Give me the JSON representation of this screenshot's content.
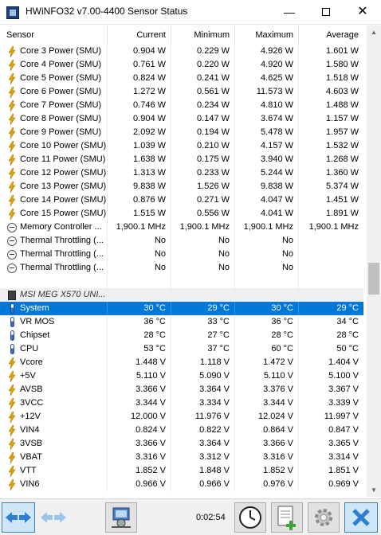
{
  "window": {
    "title": "HWiNFO32 v7.00-4400 Sensor Status"
  },
  "columns": [
    "Sensor",
    "Current",
    "Minimum",
    "Maximum",
    "Average"
  ],
  "rows": [
    {
      "icon": "bolt",
      "label": "Core 3 Power (SMU)",
      "current": "0.904 W",
      "minimum": "0.229 W",
      "maximum": "4.926 W",
      "average": "1.601 W"
    },
    {
      "icon": "bolt",
      "label": "Core 4 Power (SMU)",
      "current": "0.761 W",
      "minimum": "0.220 W",
      "maximum": "4.920 W",
      "average": "1.580 W"
    },
    {
      "icon": "bolt",
      "label": "Core 5 Power (SMU)",
      "current": "0.824 W",
      "minimum": "0.241 W",
      "maximum": "4.625 W",
      "average": "1.518 W"
    },
    {
      "icon": "bolt",
      "label": "Core 6 Power (SMU)",
      "current": "1.272 W",
      "minimum": "0.561 W",
      "maximum": "11.573 W",
      "average": "4.603 W"
    },
    {
      "icon": "bolt",
      "label": "Core 7 Power (SMU)",
      "current": "0.746 W",
      "minimum": "0.234 W",
      "maximum": "4.810 W",
      "average": "1.488 W"
    },
    {
      "icon": "bolt",
      "label": "Core 8 Power (SMU)",
      "current": "0.904 W",
      "minimum": "0.147 W",
      "maximum": "3.674 W",
      "average": "1.157 W"
    },
    {
      "icon": "bolt",
      "label": "Core 9 Power (SMU)",
      "current": "2.092 W",
      "minimum": "0.194 W",
      "maximum": "5.478 W",
      "average": "1.957 W"
    },
    {
      "icon": "bolt",
      "label": "Core 10 Power (SMU)",
      "current": "1.039 W",
      "minimum": "0.210 W",
      "maximum": "4.157 W",
      "average": "1.532 W"
    },
    {
      "icon": "bolt",
      "label": "Core 11 Power (SMU)",
      "current": "1.638 W",
      "minimum": "0.175 W",
      "maximum": "3.940 W",
      "average": "1.268 W"
    },
    {
      "icon": "bolt",
      "label": "Core 12 Power (SMU)",
      "current": "1.313 W",
      "minimum": "0.233 W",
      "maximum": "5.244 W",
      "average": "1.360 W"
    },
    {
      "icon": "bolt",
      "label": "Core 13 Power (SMU)",
      "current": "9.838 W",
      "minimum": "1.526 W",
      "maximum": "9.838 W",
      "average": "5.374 W"
    },
    {
      "icon": "bolt",
      "label": "Core 14 Power (SMU)",
      "current": "0.876 W",
      "minimum": "0.271 W",
      "maximum": "4.047 W",
      "average": "1.451 W"
    },
    {
      "icon": "bolt",
      "label": "Core 15 Power (SMU)",
      "current": "1.515 W",
      "minimum": "0.556 W",
      "maximum": "4.041 W",
      "average": "1.891 W"
    },
    {
      "icon": "gauge",
      "label": "Memory Controller ...",
      "current": "1,900.1 MHz",
      "minimum": "1,900.1 MHz",
      "maximum": "1,900.1 MHz",
      "average": "1,900.1 MHz"
    },
    {
      "icon": "gauge",
      "label": "Thermal Throttling (...",
      "current": "No",
      "minimum": "No",
      "maximum": "No",
      "average": ""
    },
    {
      "icon": "gauge",
      "label": "Thermal Throttling (...",
      "current": "No",
      "minimum": "No",
      "maximum": "No",
      "average": ""
    },
    {
      "icon": "gauge",
      "label": "Thermal Throttling (...",
      "current": "No",
      "minimum": "No",
      "maximum": "No",
      "average": ""
    },
    {
      "icon": "none",
      "label": "",
      "current": "",
      "minimum": "",
      "maximum": "",
      "average": "",
      "blank": true
    },
    {
      "icon": "chip",
      "label": "MSI MEG X570 UNI...",
      "current": "",
      "minimum": "",
      "maximum": "",
      "average": "",
      "group": true
    },
    {
      "icon": "thermo",
      "label": "System",
      "current": "30 °C",
      "minimum": "29 °C",
      "maximum": "30 °C",
      "average": "29 °C",
      "selected": true
    },
    {
      "icon": "thermo",
      "label": "VR MOS",
      "current": "36 °C",
      "minimum": "33 °C",
      "maximum": "36 °C",
      "average": "34 °C"
    },
    {
      "icon": "thermo",
      "label": "Chipset",
      "current": "28 °C",
      "minimum": "27 °C",
      "maximum": "28 °C",
      "average": "28 °C"
    },
    {
      "icon": "thermo",
      "label": "CPU",
      "current": "53 °C",
      "minimum": "37 °C",
      "maximum": "60 °C",
      "average": "50 °C"
    },
    {
      "icon": "bolt",
      "label": "Vcore",
      "current": "1.448 V",
      "minimum": "1.118 V",
      "maximum": "1.472 V",
      "average": "1.404 V"
    },
    {
      "icon": "bolt",
      "label": "+5V",
      "current": "5.110 V",
      "minimum": "5.090 V",
      "maximum": "5.110 V",
      "average": "5.100 V"
    },
    {
      "icon": "bolt",
      "label": "AVSB",
      "current": "3.366 V",
      "minimum": "3.364 V",
      "maximum": "3.376 V",
      "average": "3.367 V"
    },
    {
      "icon": "bolt",
      "label": "3VCC",
      "current": "3.344 V",
      "minimum": "3.334 V",
      "maximum": "3.344 V",
      "average": "3.339 V"
    },
    {
      "icon": "bolt",
      "label": "+12V",
      "current": "12.000 V",
      "minimum": "11.976 V",
      "maximum": "12.024 V",
      "average": "11.997 V"
    },
    {
      "icon": "bolt",
      "label": "VIN4",
      "current": "0.824 V",
      "minimum": "0.822 V",
      "maximum": "0.864 V",
      "average": "0.847 V"
    },
    {
      "icon": "bolt",
      "label": "3VSB",
      "current": "3.366 V",
      "minimum": "3.364 V",
      "maximum": "3.366 V",
      "average": "3.365 V"
    },
    {
      "icon": "bolt",
      "label": "VBAT",
      "current": "3.316 V",
      "minimum": "3.312 V",
      "maximum": "3.316 V",
      "average": "3.314 V"
    },
    {
      "icon": "bolt",
      "label": "VTT",
      "current": "1.852 V",
      "minimum": "1.848 V",
      "maximum": "1.852 V",
      "average": "1.851 V"
    },
    {
      "icon": "bolt",
      "label": "VIN6",
      "current": "0.966 V",
      "minimum": "0.966 V",
      "maximum": "0.976 V",
      "average": "0.969 V"
    }
  ],
  "toolbar": {
    "elapsed": "0:02:54",
    "buttons": [
      {
        "name": "nav-expand-button",
        "icon": "double-arrow-icon"
      },
      {
        "name": "nav-collapse-button",
        "icon": "double-arrow-disabled-icon"
      },
      {
        "name": "network-monitor-button",
        "icon": "network-icon"
      },
      {
        "name": "clock-button",
        "icon": "clock-icon"
      },
      {
        "name": "add-report-button",
        "icon": "add-report-icon"
      },
      {
        "name": "settings-button",
        "icon": "gear-icon"
      },
      {
        "name": "close-sensors-button",
        "icon": "close-icon"
      }
    ]
  },
  "colors": {
    "selected": "#0078d7",
    "accent_blue": "#3c7fb1",
    "bolt": "#e0a000"
  }
}
